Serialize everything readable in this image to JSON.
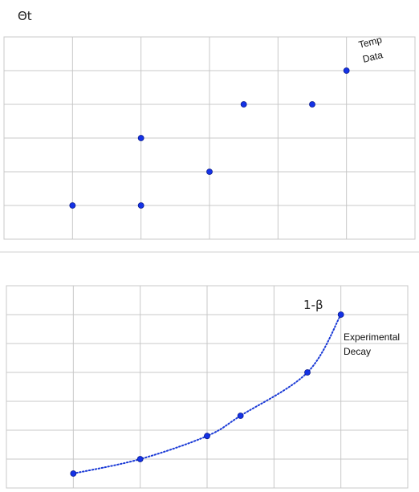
{
  "chart_data": [
    {
      "type": "scatter",
      "title": "Θt",
      "annotation": [
        "Temp",
        "Data"
      ],
      "grid": true,
      "xlim": [
        0,
        6
      ],
      "ylim": [
        0,
        6
      ],
      "points": [
        {
          "x": 1.0,
          "y": 1
        },
        {
          "x": 2.0,
          "y": 1
        },
        {
          "x": 2.0,
          "y": 3
        },
        {
          "x": 3.0,
          "y": 2
        },
        {
          "x": 3.5,
          "y": 4
        },
        {
          "x": 4.5,
          "y": 4
        },
        {
          "x": 5.0,
          "y": 5
        }
      ]
    },
    {
      "type": "line",
      "title": "1-β",
      "annotation": [
        "Experimental",
        "Decay"
      ],
      "grid": true,
      "line_style": "dotted",
      "xlim": [
        0,
        6
      ],
      "ylim": [
        0,
        7
      ],
      "points": [
        {
          "x": 1.0,
          "y": 0.5
        },
        {
          "x": 2.0,
          "y": 1.0
        },
        {
          "x": 3.0,
          "y": 1.8
        },
        {
          "x": 3.5,
          "y": 2.5
        },
        {
          "x": 4.5,
          "y": 4.0
        },
        {
          "x": 5.0,
          "y": 6.0
        }
      ]
    }
  ]
}
